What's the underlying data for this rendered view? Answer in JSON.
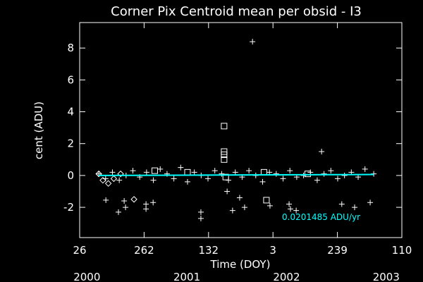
{
  "chart_data": {
    "type": "scatter",
    "title": "Corner Pix Centroid mean per obsid - I3",
    "xlabel": "Time (DOY)",
    "ylabel": "cent (ADU)",
    "annotation": "0.0201485 ADU/yr",
    "xlim": [
      25,
      1205
    ],
    "ylim": [
      -3.9,
      9.6
    ],
    "xticks": [
      {
        "value": 25,
        "label": "26"
      },
      {
        "value": 261,
        "label": "262"
      },
      {
        "value": 497,
        "label": "132"
      },
      {
        "value": 733,
        "label": "3"
      },
      {
        "value": 969,
        "label": "239"
      },
      {
        "value": 1205,
        "label": "110"
      }
    ],
    "year_ticks": [
      {
        "value": 0,
        "label": "2000"
      },
      {
        "value": 366,
        "label": "2001"
      },
      {
        "value": 731,
        "label": "2002"
      },
      {
        "value": 1096,
        "label": "2003"
      }
    ],
    "yticks": [
      -2,
      0,
      2,
      4,
      6,
      8
    ],
    "series": [
      {
        "marker": "plus",
        "color": "#ffffff",
        "x": [
          95,
          120,
          145,
          170,
          195,
          220,
          245,
          270,
          295,
          320,
          345,
          370,
          395,
          420,
          445,
          470,
          495,
          520,
          545,
          570,
          595,
          620,
          645,
          670,
          695,
          720,
          745,
          770,
          795,
          820,
          845,
          870,
          895,
          920,
          945,
          970,
          995,
          1020,
          1045,
          1070,
          1102,
          658,
          911,
          121,
          167,
          193,
          188,
          268,
          268,
          294,
          469,
          469,
          565,
          585,
          611,
          629,
          722,
          792,
          797,
          818,
          985,
          1032,
          1089
        ],
        "values": [
          0.1,
          -0.2,
          0.2,
          -0.3,
          0.0,
          0.3,
          -0.1,
          0.2,
          -0.3,
          0.4,
          0.1,
          -0.2,
          0.5,
          -0.4,
          0.2,
          0.0,
          -0.2,
          0.3,
          0.1,
          -0.3,
          0.2,
          -0.1,
          0.3,
          0.0,
          -0.4,
          0.2,
          0.1,
          -0.2,
          0.3,
          -0.1,
          0.0,
          0.2,
          -0.3,
          0.1,
          0.3,
          -0.2,
          0.0,
          0.2,
          -0.1,
          0.4,
          0.1,
          8.4,
          1.5,
          -1.55,
          -2.3,
          -2.0,
          -1.6,
          -1.8,
          -2.1,
          -1.7,
          -2.3,
          -2.7,
          -1.0,
          -2.2,
          -1.4,
          -2.0,
          -1.9,
          -1.8,
          -2.1,
          -2.2,
          -1.8,
          -2.0,
          -1.7
        ]
      },
      {
        "marker": "square",
        "color": "#ffffff",
        "x": [
          554,
          554,
          554,
          554,
          709,
          300,
          420,
          560,
          700,
          860
        ],
        "values": [
          3.1,
          1.5,
          1.3,
          1.0,
          -1.55,
          0.3,
          0.2,
          -0.1,
          0.2,
          0.1
        ]
      },
      {
        "marker": "diamond",
        "color": "#ffffff",
        "x": [
          224,
          95,
          110,
          130,
          150,
          175
        ],
        "values": [
          -1.5,
          0.1,
          -0.3,
          -0.5,
          -0.2,
          0.1
        ]
      }
    ],
    "fit": {
      "color": "#00ffff",
      "x": [
        95,
        1102
      ],
      "values": [
        0.0,
        0.06
      ]
    }
  }
}
